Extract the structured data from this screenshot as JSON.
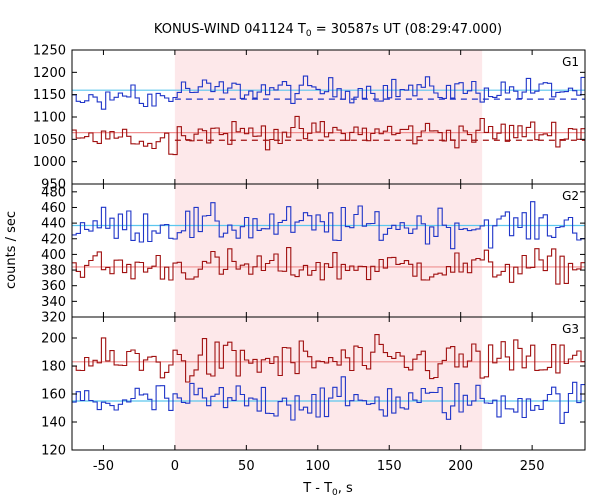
{
  "title_prefix": "KONUS-WIND 041124 T",
  "title_sub": "0",
  "title_suffix": " = 30587s UT (08:29:47.000)",
  "ylabel": "counts / sec",
  "xlabel_prefix": "T - T",
  "xlabel_sub": "0",
  "xlabel_suffix": ", s",
  "colors": {
    "blue_series": "#1f35c8",
    "red_series": "#a01010",
    "blue_mean": "#5cc6ee",
    "red_mean": "#f09090",
    "dashed_bg": "#1f35c8",
    "dashed_bg_red": "#a01010",
    "highlight": "#fde8ea"
  },
  "chart_data": {
    "type": "line",
    "subtype": "step-histogram light curves, three stacked panels sharing x axis",
    "xlim": [
      -72,
      287
    ],
    "xticks": [
      -50,
      0,
      50,
      100,
      150,
      200,
      250
    ],
    "highlight_interval": [
      0,
      215
    ],
    "bin_width": 2.944,
    "panels": [
      {
        "label": "G1",
        "ylim": [
          950,
          1250
        ],
        "yticks": [
          950,
          1000,
          1050,
          1100,
          1150,
          1200,
          1250
        ],
        "series": [
          {
            "color": "blue",
            "mean": 1160,
            "background": 1140,
            "background_style": "dashed",
            "noise": 14
          },
          {
            "color": "red",
            "mean": 1065,
            "background": 1048,
            "background_style": "dashed",
            "noise": 15
          }
        ]
      },
      {
        "label": "G2",
        "ylim": [
          320,
          490
        ],
        "yticks": [
          320,
          340,
          360,
          380,
          400,
          420,
          440,
          460,
          480
        ],
        "series": [
          {
            "color": "blue",
            "mean": 437,
            "noise": 12
          },
          {
            "color": "red",
            "mean": 384,
            "noise": 11
          }
        ]
      },
      {
        "label": "G3",
        "ylim": [
          120,
          215
        ],
        "yticks": [
          120,
          140,
          160,
          180,
          200
        ],
        "series": [
          {
            "color": "red",
            "mean": 183,
            "noise": 8
          },
          {
            "color": "blue",
            "mean": 155,
            "noise": 7
          }
        ]
      }
    ]
  }
}
